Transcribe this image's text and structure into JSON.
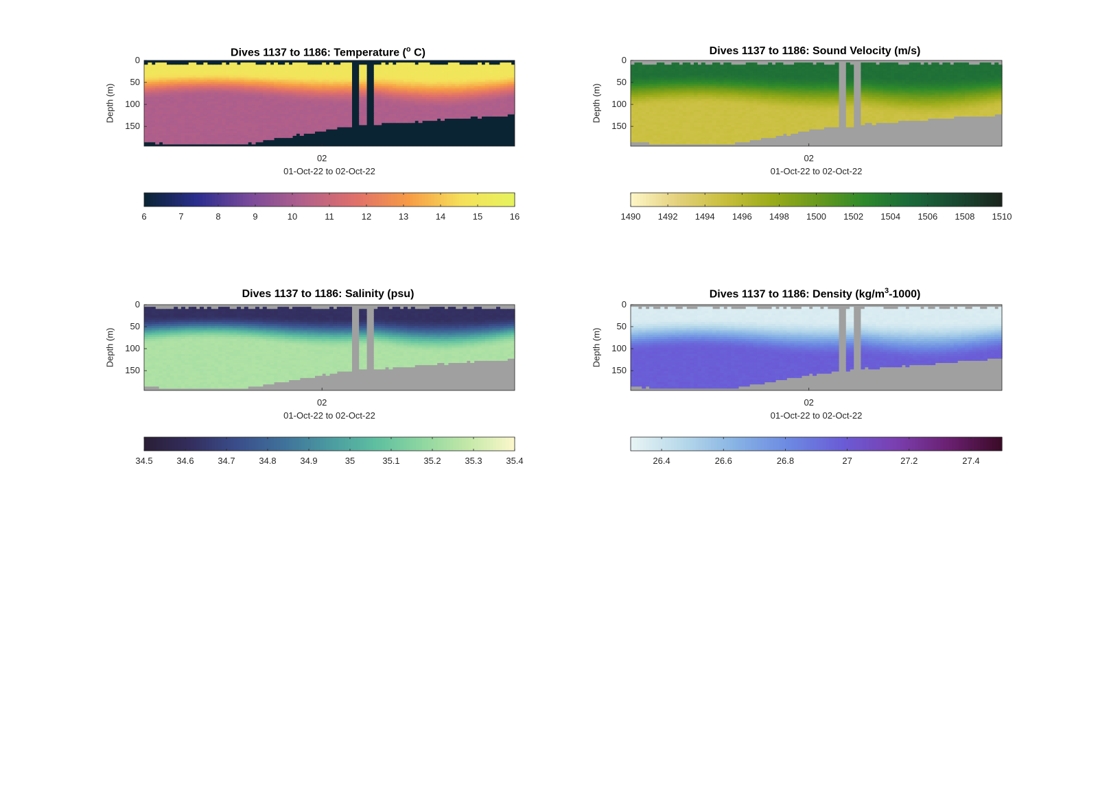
{
  "chart_data": [
    {
      "type": "heatmap",
      "title_main": "Dives 1137 to 1186: Temperature (",
      "title_sup": "o",
      "title_tail": " C)",
      "ylabel": "Depth (m)",
      "yticks": [
        "0",
        "50",
        "100",
        "150"
      ],
      "ylim": [
        0,
        195
      ],
      "xticks": [
        "02"
      ],
      "xlabel": "01-Oct-22 to 02-Oct-22",
      "colorbar": {
        "range": [
          6,
          16
        ],
        "ticks": [
          "6",
          "7",
          "8",
          "9",
          "10",
          "11",
          "12",
          "13",
          "14",
          "15",
          "16"
        ],
        "colormap": [
          "#0a2433",
          "#2a2d8e",
          "#7a4a9a",
          "#b2608a",
          "#e0706a",
          "#f79c45",
          "#f5e05a",
          "#e6f35e"
        ]
      },
      "nan_color": "#0a2433",
      "field": {
        "surface": 15.0,
        "mixed_layer_m": 45,
        "thermocline_mid": 13.0,
        "deep": 10.2
      },
      "gaps_color": "#0a2433"
    },
    {
      "type": "heatmap",
      "title_main": "Dives 1137 to 1186: Sound Velocity (m/s)",
      "title_sup": "",
      "title_tail": "",
      "ylabel": "Depth (m)",
      "yticks": [
        "0",
        "50",
        "100",
        "150"
      ],
      "ylim": [
        0,
        195
      ],
      "xticks": [
        "02"
      ],
      "xlabel": "01-Oct-22 to 02-Oct-22",
      "colorbar": {
        "range": [
          1490,
          1510
        ],
        "ticks": [
          "1490",
          "1492",
          "1494",
          "1496",
          "1498",
          "1500",
          "1502",
          "1504",
          "1506",
          "1508",
          "1510"
        ],
        "colormap": [
          "#fdf6c8",
          "#e4d17c",
          "#c9bf3e",
          "#9cac1a",
          "#6a9a1c",
          "#2f8a2a",
          "#1b6a3a",
          "#1a4a32",
          "#1a241c"
        ]
      },
      "nan_color": "#a0a0a0",
      "field": {
        "surface": 1504.5,
        "mixed_layer_m": 55,
        "deep": 1494.8
      }
    },
    {
      "type": "heatmap",
      "title_main": "Dives 1137 to 1186: Salinity (psu)",
      "title_sup": "",
      "title_tail": "",
      "ylabel": "Depth (m)",
      "yticks": [
        "0",
        "50",
        "100",
        "150"
      ],
      "ylim": [
        0,
        195
      ],
      "xticks": [
        "02"
      ],
      "xlabel": "01-Oct-22 to 02-Oct-22",
      "colorbar": {
        "range": [
          34.5,
          35.4
        ],
        "ticks": [
          "34.5",
          "34.6",
          "34.7",
          "34.8",
          "34.9",
          "35",
          "35.1",
          "35.2",
          "35.3",
          "35.4"
        ],
        "colormap": [
          "#2a1e36",
          "#332e5e",
          "#3a4d8a",
          "#3f719a",
          "#4a9aa0",
          "#5ebfa0",
          "#8ed6a0",
          "#c4e8a8",
          "#fcf8cc"
        ]
      },
      "nan_color": "#a0a0a0",
      "field": {
        "surface": 34.62,
        "mixed_layer_m": 45,
        "deep": 35.24
      }
    },
    {
      "type": "heatmap",
      "title_main": "Dives 1137 to 1186: Density (kg/m",
      "title_sup": "3",
      "title_tail": "-1000)",
      "ylabel": "Depth (m)",
      "yticks": [
        "0",
        "50",
        "100",
        "150"
      ],
      "ylim": [
        0,
        195
      ],
      "xticks": [
        "02"
      ],
      "xlabel": "01-Oct-22 to 02-Oct-22",
      "colorbar": {
        "range": [
          26.3,
          27.5
        ],
        "ticks": [
          "26.4",
          "26.6",
          "26.8",
          "27",
          "27.2",
          "27.4"
        ],
        "colormap": [
          "#e8f4f4",
          "#b6d8ea",
          "#86b2e4",
          "#6c88e2",
          "#6a5cd6",
          "#7a3fb0",
          "#6a2070",
          "#3a0a26"
        ]
      },
      "nan_color": "#a0a0a0",
      "field": {
        "surface": 26.35,
        "mixed_layer_m": 55,
        "deep": 26.98
      }
    }
  ]
}
